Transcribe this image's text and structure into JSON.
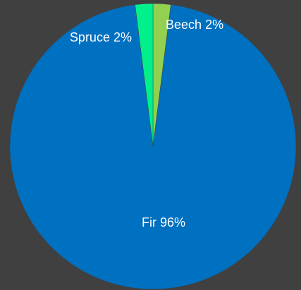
{
  "chart_data": {
    "type": "pie",
    "categories": [
      "Beech",
      "Fir",
      "Spruce"
    ],
    "values": [
      2,
      96,
      2
    ],
    "value_labels": [
      "2%",
      "96%",
      "2%"
    ],
    "colors": [
      "#92d050",
      "#0070c0",
      "#00f08c"
    ]
  }
}
